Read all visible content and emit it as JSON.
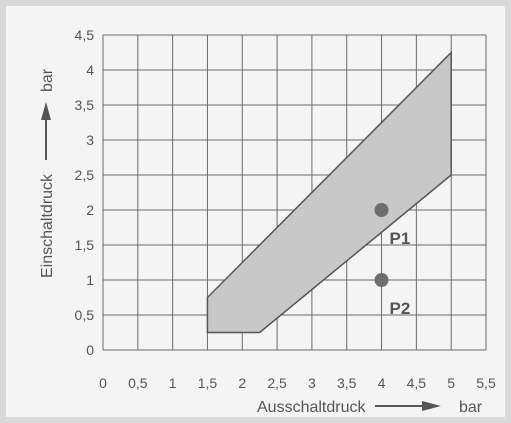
{
  "chart_data": {
    "type": "area",
    "xlabel": "Ausschaltdruck",
    "xlabel_unit": "bar",
    "ylabel": "Einschaltdruck",
    "ylabel_unit": "bar",
    "x_ticks": [
      "0",
      "0,5",
      "1",
      "1,5",
      "2",
      "2,5",
      "3",
      "3,5",
      "4",
      "4,5",
      "5",
      "5,5"
    ],
    "y_ticks": [
      "0",
      "0,5",
      "1",
      "1,5",
      "2",
      "2,5",
      "3",
      "3,5",
      "4",
      "4,5"
    ],
    "xlim": [
      0,
      5.5
    ],
    "ylim": [
      0,
      4.5
    ],
    "grid": true,
    "region": {
      "fill": "#c8c8c8",
      "stroke": "#555555",
      "polygon": [
        [
          1.5,
          0.25
        ],
        [
          2.25,
          0.25
        ],
        [
          5.0,
          2.5
        ],
        [
          5.0,
          4.25
        ],
        [
          1.5,
          0.75
        ]
      ]
    },
    "points": [
      {
        "label": "P1",
        "x": 4.0,
        "y": 2.0
      },
      {
        "label": "P2",
        "x": 4.0,
        "y": 1.0
      }
    ],
    "colors": {
      "point": "#6e6e6e",
      "grid": "#6a6a6a",
      "text": "#555555"
    }
  }
}
